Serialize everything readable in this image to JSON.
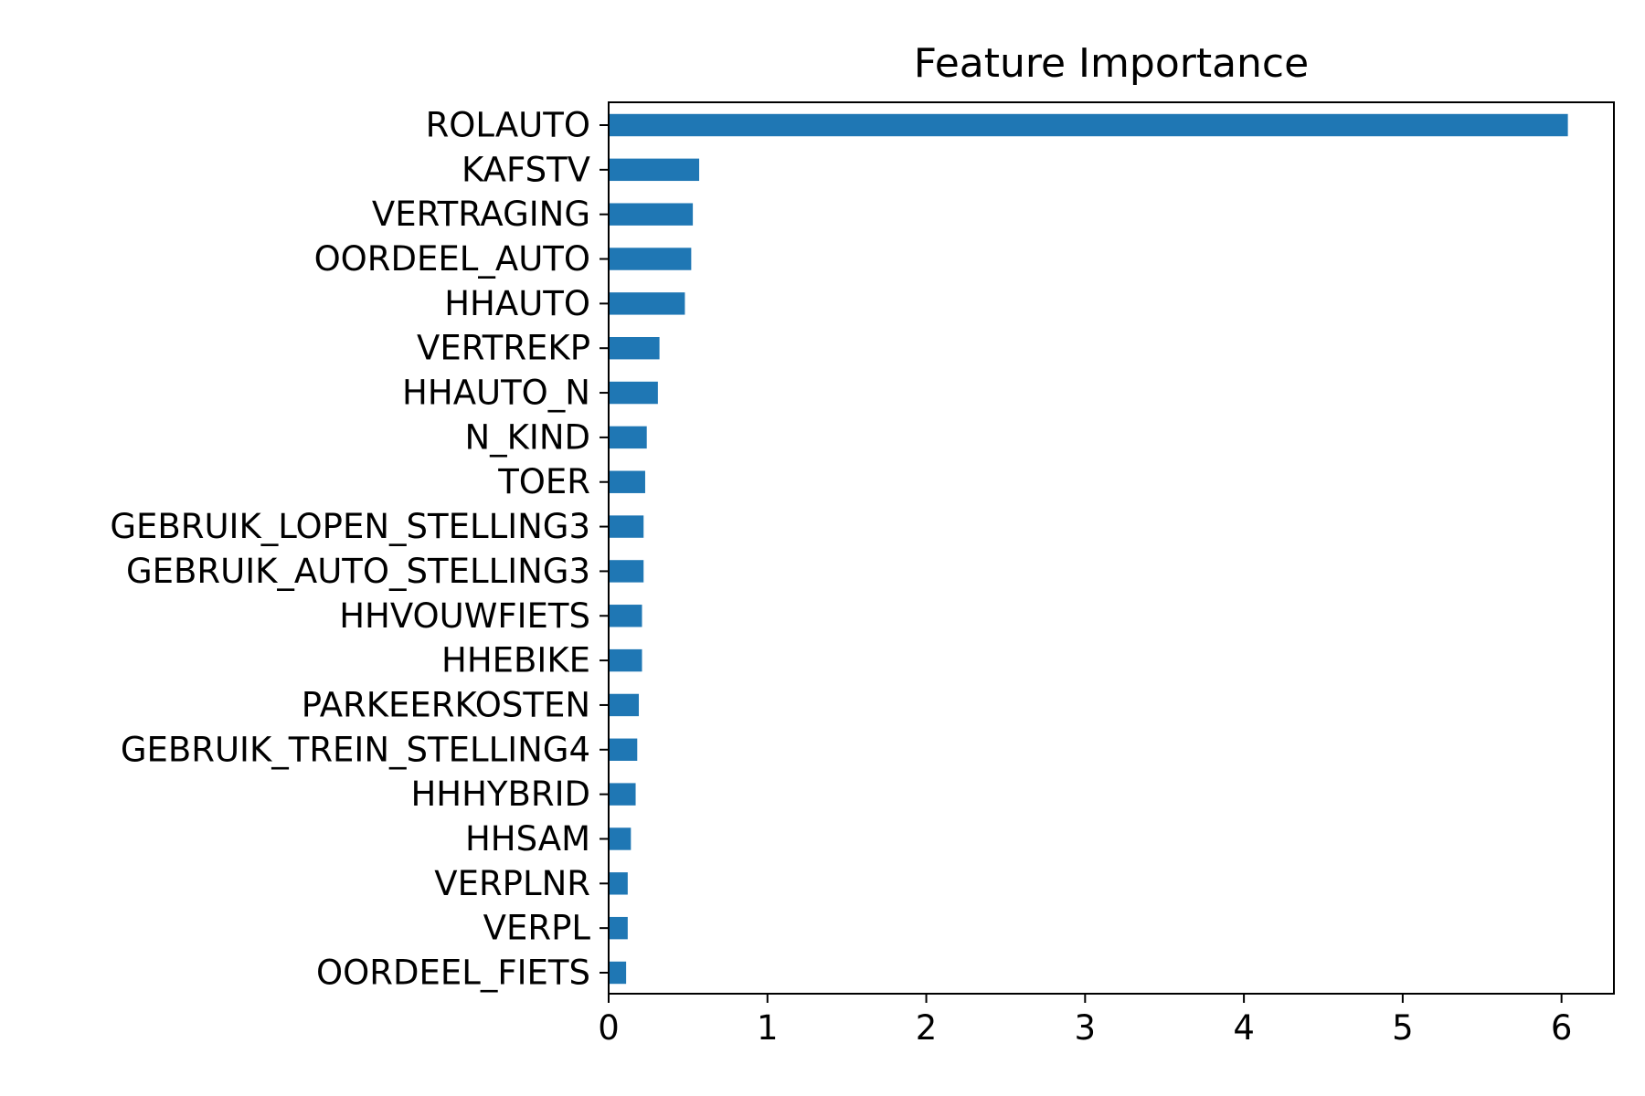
{
  "chart_data": {
    "type": "bar",
    "orientation": "horizontal",
    "title": "Feature Importance",
    "xlabel": "",
    "ylabel": "",
    "xlim": [
      0,
      6.33
    ],
    "xticks": [
      0,
      1,
      2,
      3,
      4,
      5,
      6
    ],
    "grid": false,
    "bar_color": "#1f77b4",
    "categories": [
      "ROLAUTO",
      "KAFSTV",
      "VERTRAGING",
      "OORDEEL_AUTO",
      "HHAUTO",
      "VERTREKP",
      "HHAUTO_N",
      "N_KIND",
      "TOER",
      "GEBRUIK_LOPEN_STELLING3",
      "GEBRUIK_AUTO_STELLING3",
      "HHVOUWFIETS",
      "HHEBIKE",
      "PARKEERKOSTEN",
      "GEBRUIK_TREIN_STELLING4",
      "HHHYBRID",
      "HHSAM",
      "VERPLNR",
      "VERPL",
      "OORDEEL_FIETS"
    ],
    "values": [
      6.04,
      0.57,
      0.53,
      0.52,
      0.48,
      0.32,
      0.31,
      0.24,
      0.23,
      0.22,
      0.22,
      0.21,
      0.21,
      0.19,
      0.18,
      0.17,
      0.14,
      0.12,
      0.12,
      0.11
    ]
  }
}
